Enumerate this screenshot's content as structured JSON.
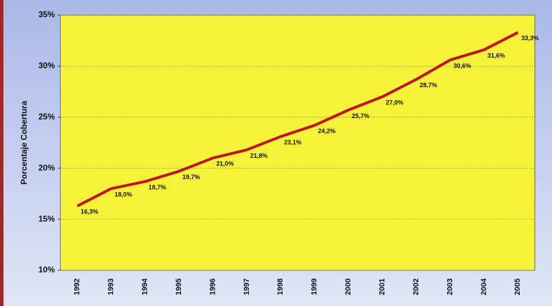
{
  "chart_data": {
    "type": "line",
    "ylabel": "Porcentaje Cobertura",
    "categories": [
      "1992",
      "1993",
      "1994",
      "1995",
      "1996",
      "1997",
      "1998",
      "1999",
      "2000",
      "2001",
      "2002",
      "2003",
      "2004",
      "2005"
    ],
    "values": [
      16.3,
      18.0,
      18.7,
      19.7,
      21.0,
      21.8,
      23.1,
      24.2,
      25.7,
      27.0,
      28.7,
      30.6,
      31.6,
      33.3
    ],
    "value_labels": [
      "16,3%",
      "18,0%",
      "18,7%",
      "19,7%",
      "21,0%",
      "21,8%",
      "23,1%",
      "24,2%",
      "25,7%",
      "27,0%",
      "28,7%",
      "30,6%",
      "31,6%",
      "33,3%"
    ],
    "color": "#c0141c",
    "ylim": [
      10,
      35
    ],
    "yticks": [
      {
        "value": 10,
        "label": "10%"
      },
      {
        "value": 15,
        "label": "15%"
      },
      {
        "value": 20,
        "label": "20%"
      },
      {
        "value": 25,
        "label": "25%"
      },
      {
        "value": 30,
        "label": "30%"
      },
      {
        "value": 35,
        "label": "35%"
      }
    ],
    "grid": true
  }
}
